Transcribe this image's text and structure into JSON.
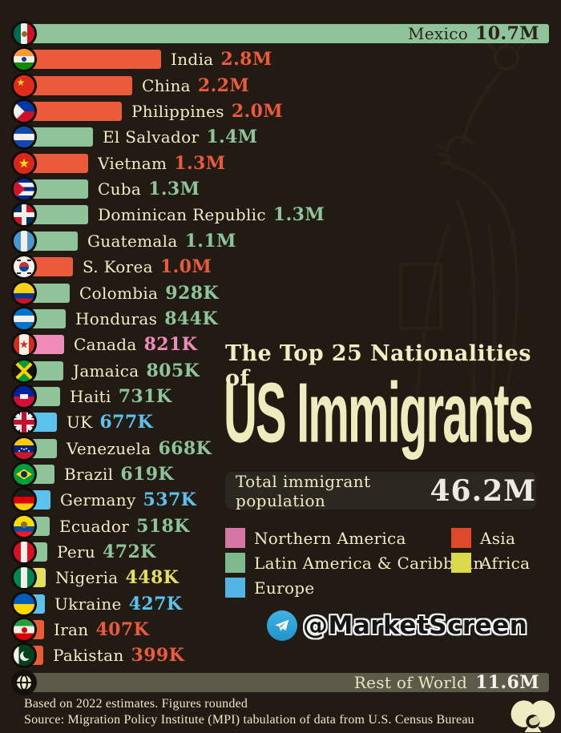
{
  "title": {
    "line1": "The Top 25 Nationalities of",
    "line2": "US Immigrants"
  },
  "total": {
    "label": "Total immigrant population",
    "value": "46.2M"
  },
  "watermark": {
    "handle": "@MarketScreen",
    "icon": "telegram-icon"
  },
  "footer": {
    "line1": "Based on 2022 estimates. Figures rounded",
    "line2": "Source: Migration Policy Institute (MPI) tabulation of data from U.S. Census Bureau",
    "logo_icon": "marketscreen-logo"
  },
  "rest": {
    "label": "Rest of World",
    "value": "11.6M",
    "icon": "globe-icon"
  },
  "regions": {
    "northern-america": {
      "label": "Northern America",
      "color": "#ef8bb9",
      "legend": "#d477a4"
    },
    "latin-america": {
      "label": "Latin America & Caribbean",
      "color": "#8fc49b",
      "legend": "#7db98c"
    },
    "europe": {
      "label": "Europe",
      "color": "#5bc2ee",
      "legend": "#52b4e4"
    },
    "asia": {
      "label": "Asia",
      "color": "#eb5a39",
      "legend": "#dd4a2b"
    },
    "africa": {
      "label": "Africa",
      "color": "#e4e05e",
      "legend": "#d9d94b"
    }
  },
  "legend": {
    "items": [
      {
        "label": "Northern America",
        "region": "northern-america"
      },
      {
        "label": "Latin America & Caribbean",
        "region": "latin-america"
      },
      {
        "label": "Europe",
        "region": "europe"
      },
      {
        "label": "Asia",
        "region": "asia"
      },
      {
        "label": "Africa",
        "region": "africa"
      }
    ]
  },
  "rows": [
    {
      "country": "Mexico",
      "value": "10.7M",
      "value_m": 10.7,
      "region": "latin-america",
      "flag": "mexico",
      "label_inside": true
    },
    {
      "country": "India",
      "value": "2.8M",
      "value_m": 2.8,
      "region": "asia",
      "flag": "india"
    },
    {
      "country": "China",
      "value": "2.2M",
      "value_m": 2.2,
      "region": "asia",
      "flag": "china"
    },
    {
      "country": "Philippines",
      "value": "2.0M",
      "value_m": 2.0,
      "region": "asia",
      "flag": "philippines"
    },
    {
      "country": "El Salvador",
      "value": "1.4M",
      "value_m": 1.4,
      "region": "latin-america",
      "flag": "el-salvador"
    },
    {
      "country": "Vietnam",
      "value": "1.3M",
      "value_m": 1.3,
      "region": "asia",
      "flag": "vietnam"
    },
    {
      "country": "Cuba",
      "value": "1.3M",
      "value_m": 1.3,
      "region": "latin-america",
      "flag": "cuba"
    },
    {
      "country": "Dominican Republic",
      "value": "1.3M",
      "value_m": 1.3,
      "region": "latin-america",
      "flag": "dominican-republic"
    },
    {
      "country": "Guatemala",
      "value": "1.1M",
      "value_m": 1.1,
      "region": "latin-america",
      "flag": "guatemala"
    },
    {
      "country": "S. Korea",
      "value": "1.0M",
      "value_m": 1.0,
      "region": "asia",
      "flag": "s-korea"
    },
    {
      "country": "Colombia",
      "value": "928K",
      "value_m": 0.928,
      "region": "latin-america",
      "flag": "colombia"
    },
    {
      "country": "Honduras",
      "value": "844K",
      "value_m": 0.844,
      "region": "latin-america",
      "flag": "honduras"
    },
    {
      "country": "Canada",
      "value": "821K",
      "value_m": 0.821,
      "region": "northern-america",
      "flag": "canada"
    },
    {
      "country": "Jamaica",
      "value": "805K",
      "value_m": 0.805,
      "region": "latin-america",
      "flag": "jamaica"
    },
    {
      "country": "Haiti",
      "value": "731K",
      "value_m": 0.731,
      "region": "latin-america",
      "flag": "haiti"
    },
    {
      "country": "UK",
      "value": "677K",
      "value_m": 0.677,
      "region": "europe",
      "flag": "uk"
    },
    {
      "country": "Venezuela",
      "value": "668K",
      "value_m": 0.668,
      "region": "latin-america",
      "flag": "venezuela"
    },
    {
      "country": "Brazil",
      "value": "619K",
      "value_m": 0.619,
      "region": "latin-america",
      "flag": "brazil"
    },
    {
      "country": "Germany",
      "value": "537K",
      "value_m": 0.537,
      "region": "europe",
      "flag": "germany"
    },
    {
      "country": "Ecuador",
      "value": "518K",
      "value_m": 0.518,
      "region": "latin-america",
      "flag": "ecuador"
    },
    {
      "country": "Peru",
      "value": "472K",
      "value_m": 0.472,
      "region": "latin-america",
      "flag": "peru"
    },
    {
      "country": "Nigeria",
      "value": "448K",
      "value_m": 0.448,
      "region": "africa",
      "flag": "nigeria"
    },
    {
      "country": "Ukraine",
      "value": "427K",
      "value_m": 0.427,
      "region": "europe",
      "flag": "ukraine"
    },
    {
      "country": "Iran",
      "value": "407K",
      "value_m": 0.407,
      "region": "asia",
      "flag": "iran"
    },
    {
      "country": "Pakistan",
      "value": "399K",
      "value_m": 0.399,
      "region": "asia",
      "flag": "pakistan"
    }
  ],
  "chart_data": {
    "type": "bar",
    "orientation": "horizontal",
    "title": "The Top 25 Nationalities of US Immigrants",
    "total_label": "Total immigrant population",
    "total_value": "46.2M",
    "total_value_persons": 46200000,
    "max_value_m": 10.7,
    "xlim_millions": [
      0,
      10.7
    ],
    "grid": false,
    "legend_position": "bottom-right-block",
    "categories": [
      "Mexico",
      "India",
      "China",
      "Philippines",
      "El Salvador",
      "Vietnam",
      "Cuba",
      "Dominican Republic",
      "Guatemala",
      "S. Korea",
      "Colombia",
      "Honduras",
      "Canada",
      "Jamaica",
      "Haiti",
      "UK",
      "Venezuela",
      "Brazil",
      "Germany",
      "Ecuador",
      "Peru",
      "Nigeria",
      "Ukraine",
      "Iran",
      "Pakistan"
    ],
    "values_persons": [
      10700000,
      2800000,
      2200000,
      2000000,
      1400000,
      1300000,
      1300000,
      1300000,
      1100000,
      1000000,
      928000,
      844000,
      821000,
      805000,
      731000,
      677000,
      668000,
      619000,
      537000,
      518000,
      472000,
      448000,
      427000,
      407000,
      399000
    ],
    "value_labels": [
      "10.7M",
      "2.8M",
      "2.2M",
      "2.0M",
      "1.4M",
      "1.3M",
      "1.3M",
      "1.3M",
      "1.1M",
      "1.0M",
      "928K",
      "844K",
      "821K",
      "805K",
      "731K",
      "677K",
      "668K",
      "619K",
      "537K",
      "518K",
      "472K",
      "448K",
      "427K",
      "407K",
      "399K"
    ],
    "region_by_category": [
      "latin-america",
      "asia",
      "asia",
      "asia",
      "latin-america",
      "asia",
      "latin-america",
      "latin-america",
      "latin-america",
      "asia",
      "latin-america",
      "latin-america",
      "northern-america",
      "latin-america",
      "latin-america",
      "europe",
      "latin-america",
      "latin-america",
      "europe",
      "latin-america",
      "latin-america",
      "africa",
      "europe",
      "asia",
      "asia"
    ],
    "rest_of_world": {
      "label": "Rest of World",
      "value_label": "11.6M",
      "value_persons": 11600000
    },
    "legend_entries": [
      "Northern America",
      "Latin America & Caribbean",
      "Europe",
      "Asia",
      "Africa"
    ],
    "notes": [
      "Based on 2022 estimates. Figures rounded",
      "Source: Migration Policy Institute (MPI) tabulation of data from U.S. Census Bureau"
    ]
  }
}
